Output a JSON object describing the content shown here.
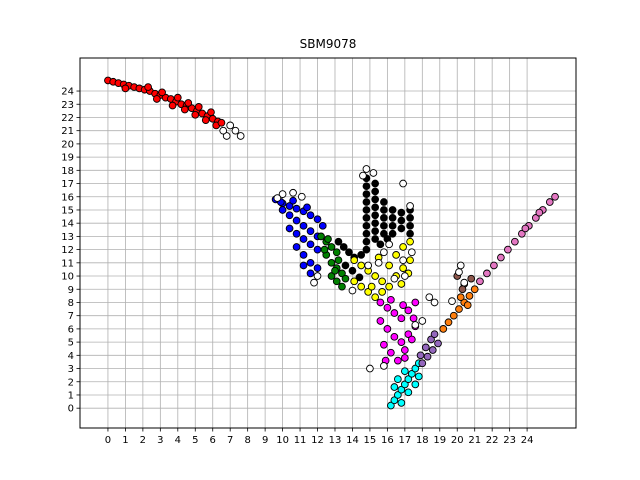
{
  "chart_data": {
    "type": "scatter",
    "title": "SBM9078",
    "xlabel": "",
    "ylabel": "",
    "xlim": [
      -1.6,
      26.8
    ],
    "ylim": [
      -1.5,
      26.5
    ],
    "xticks": [
      0,
      1,
      2,
      3,
      4,
      5,
      6,
      7,
      8,
      9,
      10,
      11,
      12,
      13,
      14,
      15,
      16,
      17,
      18,
      19,
      20,
      21,
      22,
      23,
      24
    ],
    "yticks": [
      0,
      1,
      2,
      3,
      4,
      5,
      6,
      7,
      8,
      9,
      10,
      11,
      12,
      13,
      14,
      15,
      16,
      17,
      18,
      19,
      20,
      21,
      22,
      23,
      24
    ],
    "grid": true,
    "legend": "none",
    "marker_edge_color": "#000000",
    "series": [
      {
        "color": "#ff0000",
        "points": [
          [
            0,
            24.8
          ],
          [
            0.3,
            24.7
          ],
          [
            0.6,
            24.6
          ],
          [
            0.9,
            24.5
          ],
          [
            1.2,
            24.4
          ],
          [
            1.5,
            24.3
          ],
          [
            1.8,
            24.2
          ],
          [
            2.1,
            24.1
          ],
          [
            2.4,
            24.0
          ],
          [
            2.7,
            23.8
          ],
          [
            3.0,
            23.7
          ],
          [
            3.3,
            23.5
          ],
          [
            3.6,
            23.4
          ],
          [
            3.9,
            23.2
          ],
          [
            4.2,
            23.0
          ],
          [
            4.5,
            22.9
          ],
          [
            4.8,
            22.7
          ],
          [
            5.1,
            22.5
          ],
          [
            5.4,
            22.3
          ],
          [
            5.7,
            22.1
          ],
          [
            6.0,
            21.9
          ],
          [
            6.3,
            21.7
          ],
          [
            2.3,
            24.3
          ],
          [
            3.1,
            23.9
          ],
          [
            4.0,
            23.5
          ],
          [
            4.6,
            23.1
          ],
          [
            5.2,
            22.8
          ],
          [
            5.9,
            22.4
          ],
          [
            1.0,
            24.2
          ],
          [
            2.8,
            23.4
          ],
          [
            3.7,
            22.9
          ],
          [
            4.4,
            22.6
          ],
          [
            5.0,
            22.2
          ],
          [
            5.6,
            21.8
          ],
          [
            6.2,
            21.4
          ],
          [
            6.5,
            21.6
          ]
        ]
      },
      {
        "color": "#0000ff",
        "points": [
          [
            9.6,
            15.8
          ],
          [
            10.0,
            15.5
          ],
          [
            10.4,
            15.3
          ],
          [
            10.8,
            15.1
          ],
          [
            11.2,
            14.9
          ],
          [
            11.6,
            14.6
          ],
          [
            12.0,
            14.3
          ],
          [
            10.0,
            15.0
          ],
          [
            10.4,
            14.6
          ],
          [
            10.8,
            14.2
          ],
          [
            11.2,
            13.8
          ],
          [
            11.6,
            13.4
          ],
          [
            12.0,
            13.0
          ],
          [
            10.4,
            13.6
          ],
          [
            10.8,
            13.2
          ],
          [
            11.2,
            12.8
          ],
          [
            11.6,
            12.4
          ],
          [
            12.0,
            12.0
          ],
          [
            10.8,
            12.2
          ],
          [
            11.2,
            11.6
          ],
          [
            11.6,
            11.0
          ],
          [
            12.0,
            10.6
          ],
          [
            11.2,
            10.8
          ],
          [
            11.6,
            10.2
          ],
          [
            10.6,
            15.7
          ],
          [
            11.4,
            15.2
          ],
          [
            9.9,
            15.6
          ],
          [
            12.3,
            13.8
          ]
        ]
      },
      {
        "color": "#008000",
        "points": [
          [
            12.2,
            13.0
          ],
          [
            12.5,
            12.6
          ],
          [
            12.8,
            12.2
          ],
          [
            13.1,
            11.8
          ],
          [
            12.5,
            11.6
          ],
          [
            12.8,
            11.0
          ],
          [
            13.1,
            10.6
          ],
          [
            13.4,
            10.2
          ],
          [
            12.8,
            10.0
          ],
          [
            13.1,
            9.6
          ],
          [
            13.4,
            9.2
          ],
          [
            12.4,
            12.0
          ],
          [
            13.2,
            11.2
          ],
          [
            13.6,
            9.8
          ],
          [
            12.6,
            12.8
          ],
          [
            13.0,
            10.4
          ]
        ]
      },
      {
        "color": "#000000",
        "points": [
          [
            13.2,
            12.6
          ],
          [
            13.5,
            12.2
          ],
          [
            13.8,
            11.8
          ],
          [
            14.1,
            11.4
          ],
          [
            13.6,
            10.8
          ],
          [
            14.0,
            10.4
          ],
          [
            14.4,
            9.9
          ],
          [
            14.8,
            17.4
          ],
          [
            14.8,
            16.8
          ],
          [
            14.8,
            16.2
          ],
          [
            14.8,
            15.6
          ],
          [
            14.8,
            15.0
          ],
          [
            14.8,
            14.4
          ],
          [
            14.8,
            13.8
          ],
          [
            14.8,
            13.2
          ],
          [
            14.8,
            12.6
          ],
          [
            14.8,
            12.0
          ],
          [
            15.3,
            17.0
          ],
          [
            15.3,
            16.4
          ],
          [
            15.3,
            15.8
          ],
          [
            15.3,
            15.2
          ],
          [
            15.3,
            14.6
          ],
          [
            15.3,
            14.0
          ],
          [
            15.3,
            13.4
          ],
          [
            15.3,
            12.8
          ],
          [
            15.8,
            15.6
          ],
          [
            15.8,
            15.0
          ],
          [
            15.8,
            14.4
          ],
          [
            15.8,
            13.8
          ],
          [
            15.8,
            13.2
          ],
          [
            16.3,
            15.0
          ],
          [
            16.3,
            14.4
          ],
          [
            16.3,
            13.8
          ],
          [
            16.3,
            13.2
          ],
          [
            16.8,
            14.8
          ],
          [
            16.8,
            14.2
          ],
          [
            16.8,
            13.6
          ],
          [
            17.3,
            15.0
          ],
          [
            17.3,
            14.4
          ],
          [
            17.3,
            13.8
          ],
          [
            17.3,
            13.2
          ],
          [
            16.0,
            12.8
          ],
          [
            14.5,
            11.6
          ],
          [
            15.6,
            12.4
          ]
        ]
      },
      {
        "color": "#ffff00",
        "points": [
          [
            14.1,
            11.2
          ],
          [
            14.5,
            10.8
          ],
          [
            14.9,
            10.4
          ],
          [
            15.3,
            10.0
          ],
          [
            15.7,
            9.6
          ],
          [
            14.1,
            9.6
          ],
          [
            14.5,
            9.2
          ],
          [
            14.9,
            8.8
          ],
          [
            15.3,
            8.4
          ],
          [
            15.7,
            8.8
          ],
          [
            16.1,
            9.2
          ],
          [
            16.5,
            10.0
          ],
          [
            16.9,
            10.6
          ],
          [
            17.3,
            11.2
          ],
          [
            16.5,
            11.6
          ],
          [
            16.9,
            12.2
          ],
          [
            17.3,
            12.6
          ],
          [
            15.5,
            11.4
          ],
          [
            16.1,
            10.8
          ],
          [
            15.1,
            9.2
          ],
          [
            16.8,
            9.4
          ],
          [
            17.2,
            10.2
          ]
        ]
      },
      {
        "color": "#ff00ff",
        "points": [
          [
            15.6,
            8.0
          ],
          [
            16.0,
            7.6
          ],
          [
            16.4,
            7.2
          ],
          [
            16.8,
            6.8
          ],
          [
            17.2,
            7.4
          ],
          [
            17.6,
            8.0
          ],
          [
            15.6,
            6.6
          ],
          [
            16.0,
            6.0
          ],
          [
            16.4,
            5.4
          ],
          [
            16.8,
            5.0
          ],
          [
            17.2,
            5.6
          ],
          [
            17.6,
            6.2
          ],
          [
            15.8,
            4.8
          ],
          [
            16.2,
            4.2
          ],
          [
            16.6,
            3.6
          ],
          [
            17.0,
            4.4
          ],
          [
            17.4,
            5.2
          ],
          [
            15.9,
            3.6
          ],
          [
            16.9,
            7.8
          ],
          [
            17.5,
            6.8
          ],
          [
            16.2,
            8.2
          ],
          [
            17.0,
            3.8
          ]
        ]
      },
      {
        "color": "#00ffff",
        "points": [
          [
            16.2,
            0.2
          ],
          [
            16.4,
            0.6
          ],
          [
            16.6,
            1.0
          ],
          [
            16.8,
            1.4
          ],
          [
            17.0,
            1.8
          ],
          [
            17.2,
            2.2
          ],
          [
            17.4,
            2.6
          ],
          [
            17.6,
            3.0
          ],
          [
            17.8,
            3.4
          ],
          [
            16.6,
            2.2
          ],
          [
            17.0,
            2.8
          ],
          [
            16.8,
            0.4
          ],
          [
            17.2,
            1.2
          ],
          [
            17.6,
            1.8
          ],
          [
            16.4,
            1.6
          ],
          [
            17.8,
            2.4
          ]
        ]
      },
      {
        "color": "#9467bd",
        "points": [
          [
            18.0,
            3.4
          ],
          [
            18.3,
            3.9
          ],
          [
            18.6,
            4.4
          ],
          [
            18.9,
            4.9
          ],
          [
            18.2,
            4.6
          ],
          [
            18.5,
            5.2
          ],
          [
            17.9,
            4.0
          ],
          [
            18.7,
            5.6
          ]
        ]
      },
      {
        "color": "#ff7f0e",
        "points": [
          [
            19.2,
            6.0
          ],
          [
            19.5,
            6.5
          ],
          [
            19.8,
            7.0
          ],
          [
            20.1,
            7.5
          ],
          [
            20.4,
            8.0
          ],
          [
            20.7,
            8.5
          ],
          [
            21.0,
            9.0
          ],
          [
            20.2,
            8.4
          ],
          [
            20.6,
            7.8
          ]
        ]
      },
      {
        "color": "#8c564b",
        "points": [
          [
            20.0,
            10.0
          ],
          [
            20.4,
            9.4
          ],
          [
            20.8,
            9.8
          ],
          [
            20.3,
            9.0
          ]
        ]
      },
      {
        "color": "#e377c2",
        "points": [
          [
            21.3,
            9.6
          ],
          [
            21.7,
            10.2
          ],
          [
            22.1,
            10.8
          ],
          [
            22.5,
            11.4
          ],
          [
            22.9,
            12.0
          ],
          [
            23.3,
            12.6
          ],
          [
            23.7,
            13.2
          ],
          [
            24.1,
            13.8
          ],
          [
            24.5,
            14.4
          ],
          [
            24.9,
            15.0
          ],
          [
            25.3,
            15.6
          ],
          [
            25.6,
            16.0
          ],
          [
            24.7,
            14.8
          ],
          [
            23.9,
            13.6
          ]
        ]
      },
      {
        "color": "#ffffff",
        "points": [
          [
            7.0,
            21.4
          ],
          [
            7.3,
            21.0
          ],
          [
            6.8,
            20.6
          ],
          [
            7.6,
            20.6
          ],
          [
            6.6,
            21.0
          ],
          [
            14.8,
            18.1
          ],
          [
            14.6,
            17.6
          ],
          [
            15.2,
            17.8
          ],
          [
            16.9,
            17.0
          ],
          [
            17.3,
            15.3
          ],
          [
            10.0,
            16.2
          ],
          [
            10.6,
            16.3
          ],
          [
            11.1,
            16.0
          ],
          [
            9.7,
            15.9
          ],
          [
            11.8,
            9.5
          ],
          [
            12.0,
            10.0
          ],
          [
            14.9,
            10.8
          ],
          [
            15.8,
            11.8
          ],
          [
            17.4,
            11.8
          ],
          [
            16.9,
            11.2
          ],
          [
            17.0,
            10.0
          ],
          [
            18.4,
            8.4
          ],
          [
            18.7,
            8.0
          ],
          [
            19.7,
            8.1
          ],
          [
            18.0,
            6.6
          ],
          [
            17.6,
            6.3
          ],
          [
            15.0,
            3.0
          ],
          [
            15.8,
            3.2
          ],
          [
            16.4,
            9.8
          ],
          [
            16.1,
            12.4
          ],
          [
            20.1,
            10.3
          ],
          [
            20.2,
            10.8
          ],
          [
            20.4,
            9.5
          ],
          [
            14.0,
            8.9
          ],
          [
            15.5,
            11.0
          ]
        ]
      }
    ]
  }
}
